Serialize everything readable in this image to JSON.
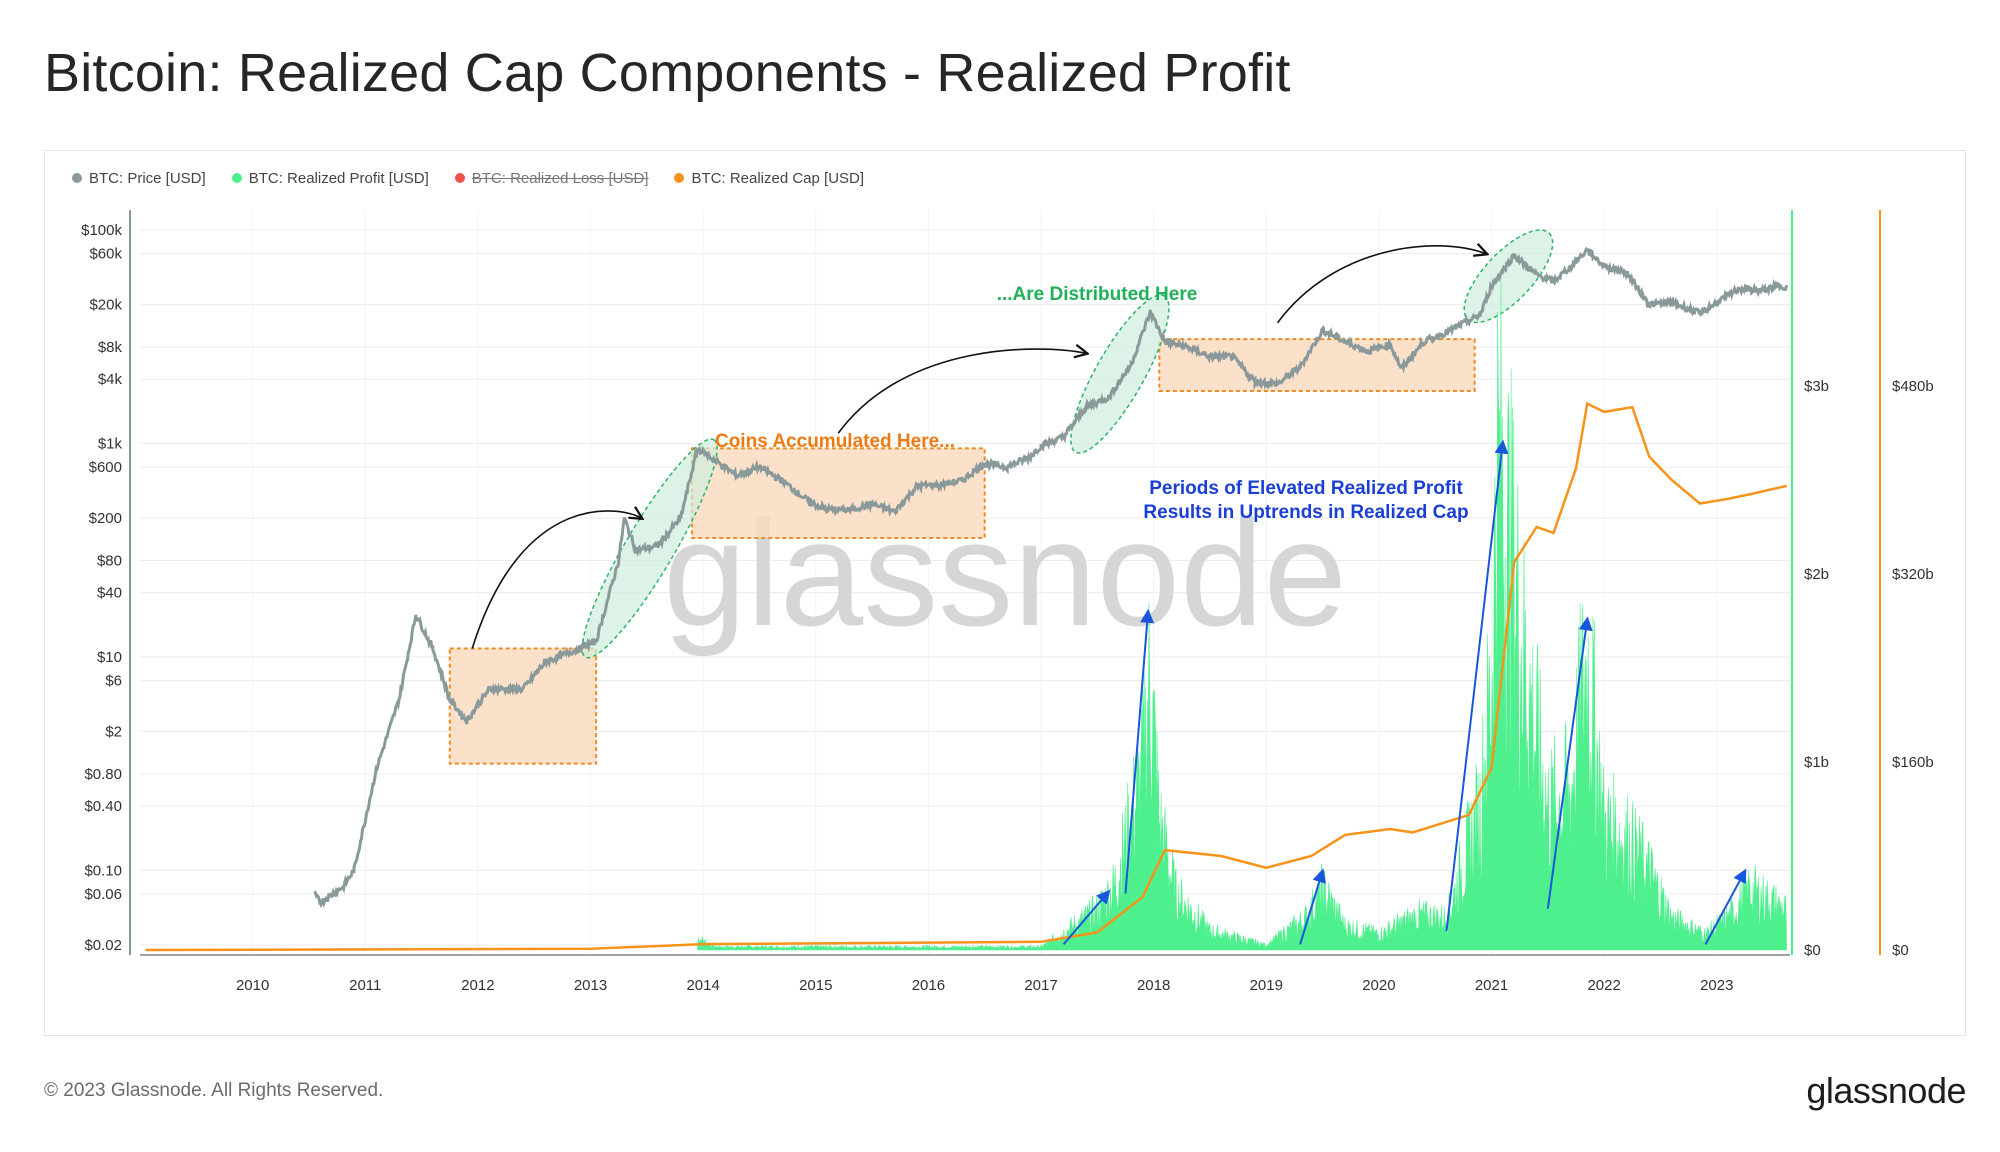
{
  "page": {
    "title": "Bitcoin: Realized Cap Components - Realized Profit",
    "copyright": "© 2023 Glassnode. All Rights Reserved.",
    "logo": "glassnode",
    "watermark": "glassnode"
  },
  "legend": [
    {
      "label": "BTC: Price [USD]",
      "color": "#8a9a9b",
      "disabled": false
    },
    {
      "label": "BTC: Realized Profit [USD]",
      "color": "#4ef08e",
      "disabled": false
    },
    {
      "label": "BTC: Realized Loss [USD]",
      "color": "#f0524e",
      "disabled": true
    },
    {
      "label": "BTC: Realized Cap [USD]",
      "color": "#f7931a",
      "disabled": false
    }
  ],
  "annotations": {
    "accumulated": "Coins Accumulated Here...",
    "distributed": "...Are Distributed Here",
    "elevated_line1": "Periods of Elevated Realized Profit",
    "elevated_line2": "Results in Uptrends in Realized Cap"
  },
  "colors": {
    "price": "#8a9a9b",
    "profit": "#4ef08e",
    "realized_cap": "#f7931a",
    "accum_box": "#fbd9bd",
    "accum_border": "#f08a24",
    "distrib_fill": "#cfeedd",
    "distrib_border": "#2bb36b",
    "arrow_blue": "#1a56db",
    "text_orange": "#f07a10",
    "text_green": "#1fb05a",
    "text_blue": "#1a3fd6"
  },
  "chart_data": {
    "type": "line",
    "title": "Bitcoin: Realized Cap Components - Realized Profit",
    "x_ticks": [
      "2010",
      "2011",
      "2012",
      "2013",
      "2014",
      "2015",
      "2016",
      "2017",
      "2018",
      "2019",
      "2020",
      "2021",
      "2022",
      "2023"
    ],
    "x_range": [
      2009.0,
      2023.65
    ],
    "y_left": {
      "scale": "log",
      "ticks": [
        "$100k",
        "$60k",
        "$20k",
        "$8k",
        "$4k",
        "$1k",
        "$600",
        "$200",
        "$80",
        "$40",
        "$10",
        "$6",
        "$2",
        "$0.80",
        "$0.40",
        "$0.10",
        "$0.06",
        "$0.02"
      ],
      "tick_values": [
        100000,
        60000,
        20000,
        8000,
        4000,
        1000,
        600,
        200,
        80,
        40,
        10,
        6,
        2,
        0.8,
        0.4,
        0.1,
        0.06,
        0.02
      ]
    },
    "y_right_profit": {
      "ticks": [
        "$3b",
        "$2b",
        "$1b",
        "$0"
      ],
      "tick_values": [
        3000000000,
        2000000000,
        1000000000,
        0
      ]
    },
    "y_right_cap": {
      "ticks": [
        "$480b",
        "$320b",
        "$160b",
        "$0"
      ],
      "tick_values": [
        480000000000,
        320000000000,
        160000000000,
        0
      ]
    },
    "grid": true,
    "legend_position": "top-left",
    "series": [
      {
        "name": "BTC: Price [USD]",
        "axis": "left-log",
        "points": [
          [
            2010.55,
            0.06
          ],
          [
            2010.6,
            0.05
          ],
          [
            2010.8,
            0.07
          ],
          [
            2010.9,
            0.1
          ],
          [
            2011.1,
            0.9
          ],
          [
            2011.3,
            4
          ],
          [
            2011.45,
            25
          ],
          [
            2011.6,
            12
          ],
          [
            2011.75,
            4
          ],
          [
            2011.9,
            2.5
          ],
          [
            2012.1,
            5
          ],
          [
            2012.4,
            5
          ],
          [
            2012.6,
            9
          ],
          [
            2012.9,
            12
          ],
          [
            2013.05,
            14
          ],
          [
            2013.25,
            80
          ],
          [
            2013.3,
            200
          ],
          [
            2013.4,
            100
          ],
          [
            2013.6,
            110
          ],
          [
            2013.8,
            200
          ],
          [
            2013.95,
            900
          ],
          [
            2014.1,
            700
          ],
          [
            2014.3,
            500
          ],
          [
            2014.5,
            600
          ],
          [
            2014.7,
            450
          ],
          [
            2014.95,
            280
          ],
          [
            2015.1,
            240
          ],
          [
            2015.3,
            240
          ],
          [
            2015.5,
            270
          ],
          [
            2015.7,
            230
          ],
          [
            2015.9,
            400
          ],
          [
            2016.1,
            410
          ],
          [
            2016.3,
            450
          ],
          [
            2016.5,
            650
          ],
          [
            2016.7,
            600
          ],
          [
            2016.9,
            750
          ],
          [
            2017.0,
            950
          ],
          [
            2017.2,
            1150
          ],
          [
            2017.4,
            2200
          ],
          [
            2017.6,
            2700
          ],
          [
            2017.8,
            5500
          ],
          [
            2017.97,
            17000
          ],
          [
            2018.1,
            9000
          ],
          [
            2018.3,
            8000
          ],
          [
            2018.5,
            6500
          ],
          [
            2018.7,
            6500
          ],
          [
            2018.9,
            3800
          ],
          [
            2019.1,
            3600
          ],
          [
            2019.3,
            5200
          ],
          [
            2019.5,
            11500
          ],
          [
            2019.7,
            9000
          ],
          [
            2019.9,
            7300
          ],
          [
            2020.1,
            8500
          ],
          [
            2020.2,
            5000
          ],
          [
            2020.4,
            9000
          ],
          [
            2020.6,
            11000
          ],
          [
            2020.9,
            16000
          ],
          [
            2021.0,
            30000
          ],
          [
            2021.2,
            58000
          ],
          [
            2021.4,
            38000
          ],
          [
            2021.55,
            33000
          ],
          [
            2021.7,
            45000
          ],
          [
            2021.85,
            65000
          ],
          [
            2022.0,
            46000
          ],
          [
            2022.2,
            40000
          ],
          [
            2022.4,
            20000
          ],
          [
            2022.6,
            21000
          ],
          [
            2022.85,
            16500
          ],
          [
            2023.0,
            21000
          ],
          [
            2023.2,
            28000
          ],
          [
            2023.4,
            27000
          ],
          [
            2023.55,
            30000
          ],
          [
            2023.62,
            29500
          ]
        ]
      },
      {
        "name": "BTC: Realized Profit [USD]",
        "axis": "right-profit",
        "points": [
          [
            2013.95,
            80000000
          ],
          [
            2014.1,
            20000000
          ],
          [
            2017.0,
            20000000
          ],
          [
            2017.5,
            250000000
          ],
          [
            2017.65,
            400000000
          ],
          [
            2017.9,
            1100000000
          ],
          [
            2017.97,
            1750000000
          ],
          [
            2018.05,
            800000000
          ],
          [
            2018.2,
            350000000
          ],
          [
            2018.5,
            120000000
          ],
          [
            2019.0,
            30000000
          ],
          [
            2019.35,
            200000000
          ],
          [
            2019.5,
            380000000
          ],
          [
            2019.7,
            150000000
          ],
          [
            2020.0,
            100000000
          ],
          [
            2020.35,
            220000000
          ],
          [
            2020.6,
            200000000
          ],
          [
            2020.9,
            900000000
          ],
          [
            2021.0,
            1700000000
          ],
          [
            2021.05,
            3100000000
          ],
          [
            2021.12,
            2800000000
          ],
          [
            2021.3,
            1800000000
          ],
          [
            2021.5,
            900000000
          ],
          [
            2021.7,
            1000000000
          ],
          [
            2021.85,
            1850000000
          ],
          [
            2022.0,
            800000000
          ],
          [
            2022.2,
            700000000
          ],
          [
            2022.4,
            500000000
          ],
          [
            2022.6,
            200000000
          ],
          [
            2022.9,
            100000000
          ],
          [
            2023.1,
            200000000
          ],
          [
            2023.3,
            380000000
          ],
          [
            2023.62,
            250000000
          ]
        ]
      },
      {
        "name": "BTC: Realized Cap [USD]",
        "axis": "right-cap",
        "points": [
          [
            2009.05,
            0
          ],
          [
            2013.0,
            1000000000
          ],
          [
            2014.0,
            5000000000
          ],
          [
            2017.0,
            7000000000
          ],
          [
            2017.5,
            15000000000
          ],
          [
            2017.9,
            45000000000
          ],
          [
            2018.1,
            85000000000
          ],
          [
            2018.6,
            80000000000
          ],
          [
            2019.0,
            70000000000
          ],
          [
            2019.4,
            80000000000
          ],
          [
            2019.7,
            98000000000
          ],
          [
            2020.1,
            103000000000
          ],
          [
            2020.3,
            100000000000
          ],
          [
            2020.8,
            115000000000
          ],
          [
            2021.0,
            155000000000
          ],
          [
            2021.2,
            330000000000
          ],
          [
            2021.4,
            360000000000
          ],
          [
            2021.55,
            355000000000
          ],
          [
            2021.75,
            410000000000
          ],
          [
            2021.85,
            465000000000
          ],
          [
            2022.0,
            458000000000
          ],
          [
            2022.25,
            462000000000
          ],
          [
            2022.4,
            420000000000
          ],
          [
            2022.6,
            400000000000
          ],
          [
            2022.85,
            380000000000
          ],
          [
            2023.1,
            384000000000
          ],
          [
            2023.3,
            388000000000
          ],
          [
            2023.62,
            395000000000
          ]
        ]
      }
    ]
  }
}
